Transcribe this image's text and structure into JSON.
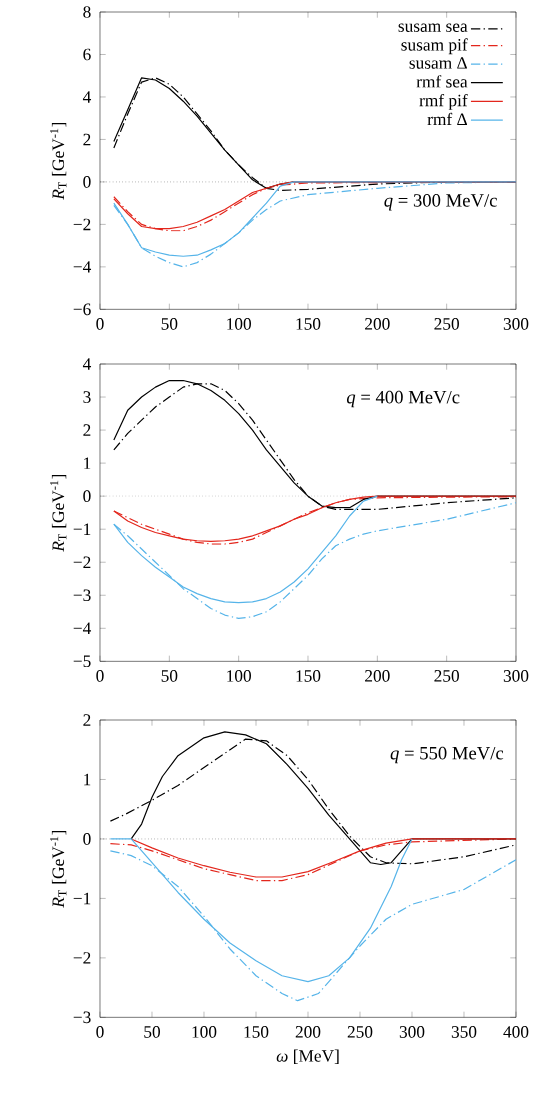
{
  "chart_data": [
    {
      "type": "line",
      "ylabel": "*R*$_{T}$ [GeV$^{-1}$]",
      "annotations": [
        "*q* = 300 MeV/c"
      ],
      "legend": "top right",
      "xlim": [
        0,
        300
      ],
      "xticks": [
        0,
        50,
        100,
        150,
        200,
        250,
        300
      ],
      "ylim": [
        -6,
        8
      ],
      "yticks": [
        {
          "value": -6,
          "label": "−6"
        },
        {
          "value": -4,
          "label": "−4"
        },
        {
          "value": -2,
          "label": "−2"
        },
        0,
        2,
        4,
        6,
        8
      ],
      "ref_lines": [
        {
          "axis": "y",
          "value": 0,
          "line_style": "dotted"
        }
      ],
      "series": [
        {
          "name": "susam sea",
          "color": "#000000",
          "line_style": "dashdot",
          "x": [
            10,
            20,
            30,
            40,
            50,
            60,
            70,
            80,
            90,
            100,
            110,
            120,
            130,
            150,
            200,
            250,
            300
          ],
          "values": [
            1.6,
            3.2,
            4.7,
            4.9,
            4.6,
            4.0,
            3.2,
            2.4,
            1.5,
            0.8,
            0.2,
            -0.3,
            -0.4,
            -0.35,
            -0.1,
            0,
            0
          ]
        },
        {
          "name": "susam pif",
          "color": "#e3261c",
          "line_style": "dashdot",
          "x": [
            10,
            20,
            30,
            40,
            50,
            60,
            70,
            80,
            90,
            100,
            110,
            120,
            130,
            150,
            200,
            300
          ],
          "values": [
            -0.7,
            -1.4,
            -2.0,
            -2.2,
            -2.3,
            -2.3,
            -2.1,
            -1.8,
            -1.4,
            -1.0,
            -0.6,
            -0.3,
            -0.15,
            -0.05,
            -0.03,
            0
          ]
        },
        {
          "name": "susam Δ",
          "color": "#56b4e9",
          "line_style": "dashdot",
          "x": [
            10,
            20,
            30,
            40,
            50,
            60,
            70,
            80,
            90,
            100,
            110,
            120,
            130,
            150,
            200,
            250,
            300
          ],
          "values": [
            -1.1,
            -2.0,
            -3.1,
            -3.5,
            -3.8,
            -4.0,
            -3.8,
            -3.4,
            -2.9,
            -2.4,
            -1.8,
            -1.3,
            -0.9,
            -0.6,
            -0.3,
            -0.05,
            0
          ]
        },
        {
          "name": "rmf sea",
          "color": "#000000",
          "line_style": "solid",
          "x": [
            10,
            20,
            30,
            40,
            50,
            60,
            70,
            80,
            90,
            100,
            110,
            120,
            130,
            140,
            300
          ],
          "values": [
            1.9,
            3.4,
            4.9,
            4.8,
            4.4,
            3.8,
            3.1,
            2.3,
            1.5,
            0.8,
            0.1,
            -0.3,
            -0.1,
            0,
            0
          ]
        },
        {
          "name": "rmf pif",
          "color": "#e3261c",
          "line_style": "solid",
          "x": [
            10,
            20,
            30,
            40,
            50,
            60,
            70,
            80,
            90,
            100,
            110,
            120,
            130,
            140,
            300
          ],
          "values": [
            -0.8,
            -1.5,
            -2.1,
            -2.2,
            -2.2,
            -2.1,
            -1.9,
            -1.6,
            -1.3,
            -0.9,
            -0.5,
            -0.3,
            -0.1,
            0,
            0
          ]
        },
        {
          "name": "rmf Δ",
          "color": "#56b4e9",
          "line_style": "solid",
          "x": [
            10,
            20,
            30,
            40,
            50,
            60,
            70,
            80,
            90,
            100,
            110,
            120,
            130,
            140,
            300
          ],
          "values": [
            -1.0,
            -2.0,
            -3.1,
            -3.3,
            -3.45,
            -3.5,
            -3.45,
            -3.2,
            -2.9,
            -2.4,
            -1.7,
            -1.0,
            -0.2,
            0,
            0
          ]
        }
      ]
    },
    {
      "type": "line",
      "ylabel": "*R*$_{T}$ [GeV$^{-1}$]",
      "annotations": [
        "*q* = 400 MeV/c"
      ],
      "xlim": [
        0,
        300
      ],
      "xticks": [
        0,
        50,
        100,
        150,
        200,
        250,
        300
      ],
      "ylim": [
        -5,
        4
      ],
      "yticks": [
        {
          "value": -5,
          "label": "−5"
        },
        {
          "value": -4,
          "label": "−4"
        },
        {
          "value": -3,
          "label": "−3"
        },
        {
          "value": -2,
          "label": "−2"
        },
        {
          "value": -1,
          "label": "−1"
        },
        0,
        1,
        2,
        3,
        4
      ],
      "ref_lines": [
        {
          "axis": "y",
          "value": 0,
          "line_style": "dotted"
        }
      ],
      "series": [
        {
          "color": "#000000",
          "line_style": "dashdot",
          "x": [
            10,
            20,
            30,
            40,
            50,
            60,
            70,
            80,
            90,
            100,
            110,
            120,
            130,
            140,
            150,
            160,
            170,
            180,
            200,
            250,
            300
          ],
          "values": [
            1.4,
            1.9,
            2.3,
            2.7,
            3.0,
            3.3,
            3.4,
            3.4,
            3.2,
            2.8,
            2.3,
            1.7,
            1.1,
            0.5,
            0.0,
            -0.3,
            -0.4,
            -0.4,
            -0.4,
            -0.2,
            -0.05
          ]
        },
        {
          "color": "#e3261c",
          "line_style": "dashdot",
          "x": [
            10,
            20,
            30,
            40,
            50,
            60,
            70,
            80,
            90,
            100,
            110,
            120,
            130,
            140,
            150,
            160,
            170,
            180,
            200,
            250,
            300
          ],
          "values": [
            -0.45,
            -0.65,
            -0.85,
            -1.0,
            -1.15,
            -1.3,
            -1.4,
            -1.45,
            -1.45,
            -1.4,
            -1.3,
            -1.1,
            -0.9,
            -0.7,
            -0.5,
            -0.35,
            -0.2,
            -0.1,
            -0.05,
            -0.03,
            -0.02
          ]
        },
        {
          "color": "#56b4e9",
          "line_style": "dashdot",
          "x": [
            10,
            20,
            30,
            40,
            50,
            60,
            70,
            80,
            90,
            100,
            110,
            120,
            130,
            140,
            150,
            160,
            170,
            180,
            190,
            200,
            250,
            300
          ],
          "values": [
            -0.85,
            -1.2,
            -1.6,
            -2.0,
            -2.4,
            -2.8,
            -3.1,
            -3.4,
            -3.6,
            -3.7,
            -3.65,
            -3.5,
            -3.2,
            -2.8,
            -2.4,
            -1.9,
            -1.5,
            -1.3,
            -1.15,
            -1.05,
            -0.7,
            -0.2
          ]
        },
        {
          "color": "#000000",
          "line_style": "solid",
          "x": [
            10,
            20,
            30,
            40,
            50,
            60,
            70,
            80,
            90,
            100,
            110,
            120,
            130,
            140,
            150,
            160,
            170,
            180,
            190,
            200,
            300
          ],
          "values": [
            1.7,
            2.6,
            3.0,
            3.3,
            3.5,
            3.5,
            3.4,
            3.2,
            2.9,
            2.5,
            2.0,
            1.4,
            0.9,
            0.4,
            0.0,
            -0.3,
            -0.35,
            -0.35,
            -0.1,
            0,
            0
          ]
        },
        {
          "color": "#e3261c",
          "line_style": "solid",
          "x": [
            10,
            20,
            30,
            40,
            50,
            60,
            70,
            80,
            90,
            100,
            110,
            120,
            130,
            140,
            150,
            160,
            170,
            180,
            190,
            200,
            300
          ],
          "values": [
            -0.45,
            -0.75,
            -0.95,
            -1.1,
            -1.2,
            -1.3,
            -1.35,
            -1.37,
            -1.35,
            -1.3,
            -1.2,
            -1.05,
            -0.9,
            -0.7,
            -0.55,
            -0.35,
            -0.2,
            -0.1,
            -0.03,
            0,
            0
          ]
        },
        {
          "color": "#56b4e9",
          "line_style": "solid",
          "x": [
            10,
            20,
            30,
            40,
            50,
            60,
            70,
            80,
            90,
            100,
            110,
            120,
            130,
            140,
            150,
            160,
            170,
            180,
            190,
            200
          ],
          "values": [
            -0.85,
            -1.4,
            -1.8,
            -2.15,
            -2.45,
            -2.75,
            -2.95,
            -3.1,
            -3.2,
            -3.22,
            -3.2,
            -3.1,
            -2.9,
            -2.6,
            -2.2,
            -1.7,
            -1.2,
            -0.6,
            -0.15,
            0
          ]
        }
      ]
    },
    {
      "type": "line",
      "ylabel": "*R*$_{T}$ [GeV$^{-1}$]",
      "xlabel": "*ω* [MeV]",
      "annotations": [
        "*q* = 550 MeV/c"
      ],
      "xlim": [
        0,
        400
      ],
      "xticks": [
        0,
        50,
        100,
        150,
        200,
        250,
        300,
        350,
        400
      ],
      "ylim": [
        -3,
        2
      ],
      "yticks": [
        {
          "value": -3,
          "label": "−3"
        },
        {
          "value": -2,
          "label": "−2"
        },
        {
          "value": -1,
          "label": "−1"
        },
        0,
        1,
        2
      ],
      "ref_lines": [
        {
          "axis": "y",
          "value": 0,
          "line_style": "dotted"
        }
      ],
      "series": [
        {
          "color": "#000000",
          "line_style": "dashdot",
          "x": [
            10,
            25,
            50,
            75,
            100,
            125,
            140,
            160,
            180,
            200,
            220,
            240,
            260,
            275,
            300,
            350,
            400
          ],
          "values": [
            0.3,
            0.42,
            0.65,
            0.9,
            1.2,
            1.5,
            1.68,
            1.65,
            1.4,
            1.0,
            0.5,
            0.05,
            -0.3,
            -0.4,
            -0.42,
            -0.3,
            -0.1
          ]
        },
        {
          "color": "#e3261c",
          "line_style": "dashdot",
          "x": [
            10,
            30,
            50,
            75,
            100,
            125,
            150,
            175,
            200,
            225,
            250,
            275,
            300,
            400
          ],
          "values": [
            -0.08,
            -0.1,
            -0.2,
            -0.35,
            -0.5,
            -0.6,
            -0.7,
            -0.7,
            -0.6,
            -0.4,
            -0.2,
            -0.1,
            -0.05,
            0
          ]
        },
        {
          "color": "#56b4e9",
          "line_style": "dashdot",
          "x": [
            10,
            30,
            50,
            75,
            100,
            125,
            150,
            175,
            190,
            210,
            225,
            250,
            275,
            300,
            350,
            400
          ],
          "values": [
            -0.2,
            -0.28,
            -0.45,
            -0.8,
            -1.3,
            -1.85,
            -2.3,
            -2.6,
            -2.72,
            -2.6,
            -2.3,
            -1.8,
            -1.35,
            -1.1,
            -0.85,
            -0.35
          ]
        },
        {
          "color": "#000000",
          "line_style": "solid",
          "x": [
            30,
            40,
            50,
            60,
            75,
            100,
            120,
            140,
            160,
            180,
            200,
            220,
            240,
            260,
            270,
            280,
            300,
            400
          ],
          "values": [
            0,
            0.25,
            0.7,
            1.05,
            1.4,
            1.7,
            1.8,
            1.75,
            1.6,
            1.25,
            0.85,
            0.4,
            0,
            -0.4,
            -0.43,
            -0.4,
            0,
            0
          ]
        },
        {
          "color": "#e3261c",
          "line_style": "solid",
          "x": [
            30,
            50,
            75,
            100,
            125,
            150,
            175,
            200,
            225,
            250,
            275,
            300,
            400
          ],
          "values": [
            0,
            -0.15,
            -0.32,
            -0.45,
            -0.56,
            -0.64,
            -0.64,
            -0.55,
            -0.38,
            -0.2,
            -0.07,
            0,
            0
          ]
        },
        {
          "color": "#56b4e9",
          "line_style": "solid",
          "x": [
            10,
            30,
            50,
            75,
            100,
            125,
            150,
            175,
            200,
            220,
            240,
            260,
            280,
            290,
            300
          ],
          "values": [
            0,
            0,
            -0.4,
            -0.9,
            -1.35,
            -1.75,
            -2.05,
            -2.3,
            -2.4,
            -2.3,
            -2.0,
            -1.5,
            -0.8,
            -0.35,
            0
          ]
        }
      ]
    }
  ]
}
